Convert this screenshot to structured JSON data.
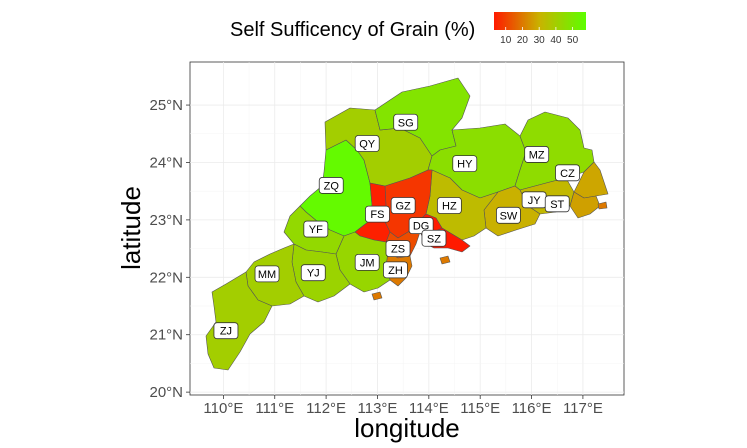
{
  "legend": {
    "title": "Self Sufficency of Grain (%)",
    "ticks": [
      "10",
      "20",
      "30",
      "40",
      "50"
    ],
    "tick_values": [
      10,
      20,
      30,
      40,
      50
    ],
    "range": [
      3,
      58
    ],
    "colors": [
      "#ff1a00",
      "#5cff00"
    ]
  },
  "axes": {
    "xlabel": "longitude",
    "ylabel": "latitude",
    "x_ticks": [
      "110°E",
      "111°E",
      "112°E",
      "113°E",
      "114°E",
      "115°E",
      "116°E",
      "117°E"
    ],
    "x_values": [
      110,
      111,
      112,
      113,
      114,
      115,
      116,
      117
    ],
    "y_ticks": [
      "20°N",
      "21°N",
      "22°N",
      "23°N",
      "24°N",
      "25°N"
    ],
    "y_values": [
      20,
      21,
      22,
      23,
      24,
      25
    ],
    "xlim": [
      109.35,
      117.8
    ],
    "ylim": [
      19.95,
      25.75
    ]
  },
  "chart_data": {
    "type": "choropleth",
    "regions": [
      {
        "code": "SG",
        "lon": 113.55,
        "lat": 24.7,
        "value": 48
      },
      {
        "code": "QY",
        "lon": 112.8,
        "lat": 24.33,
        "value": 40
      },
      {
        "code": "HY",
        "lon": 114.7,
        "lat": 23.98,
        "value": 46
      },
      {
        "code": "MZ",
        "lon": 116.1,
        "lat": 24.14,
        "value": 45
      },
      {
        "code": "CZ",
        "lon": 116.7,
        "lat": 23.82,
        "value": 28
      },
      {
        "code": "ZQ",
        "lon": 112.1,
        "lat": 23.6,
        "value": 56
      },
      {
        "code": "FS",
        "lon": 113.0,
        "lat": 23.1,
        "value": 4
      },
      {
        "code": "GZ",
        "lon": 113.5,
        "lat": 23.25,
        "value": 8
      },
      {
        "code": "HZ",
        "lon": 114.4,
        "lat": 23.25,
        "value": 33
      },
      {
        "code": "JY",
        "lon": 116.05,
        "lat": 23.35,
        "value": 32
      },
      {
        "code": "ST",
        "lon": 116.5,
        "lat": 23.28,
        "value": 27
      },
      {
        "code": "SW",
        "lon": 115.55,
        "lat": 23.08,
        "value": 30
      },
      {
        "code": "DG",
        "lon": 113.85,
        "lat": 22.9,
        "value": 3
      },
      {
        "code": "SZ",
        "lon": 114.1,
        "lat": 22.68,
        "value": 3
      },
      {
        "code": "YF",
        "lon": 111.8,
        "lat": 22.84,
        "value": 44
      },
      {
        "code": "ZS",
        "lon": 113.4,
        "lat": 22.5,
        "value": 12
      },
      {
        "code": "JM",
        "lon": 112.8,
        "lat": 22.26,
        "value": 43
      },
      {
        "code": "ZH",
        "lon": 113.35,
        "lat": 22.13,
        "value": 20
      },
      {
        "code": "YJ",
        "lon": 111.75,
        "lat": 22.08,
        "value": 42
      },
      {
        "code": "MM",
        "lon": 110.85,
        "lat": 22.06,
        "value": 40
      },
      {
        "code": "ZJ",
        "lon": 110.05,
        "lat": 21.07,
        "value": 40
      }
    ]
  }
}
